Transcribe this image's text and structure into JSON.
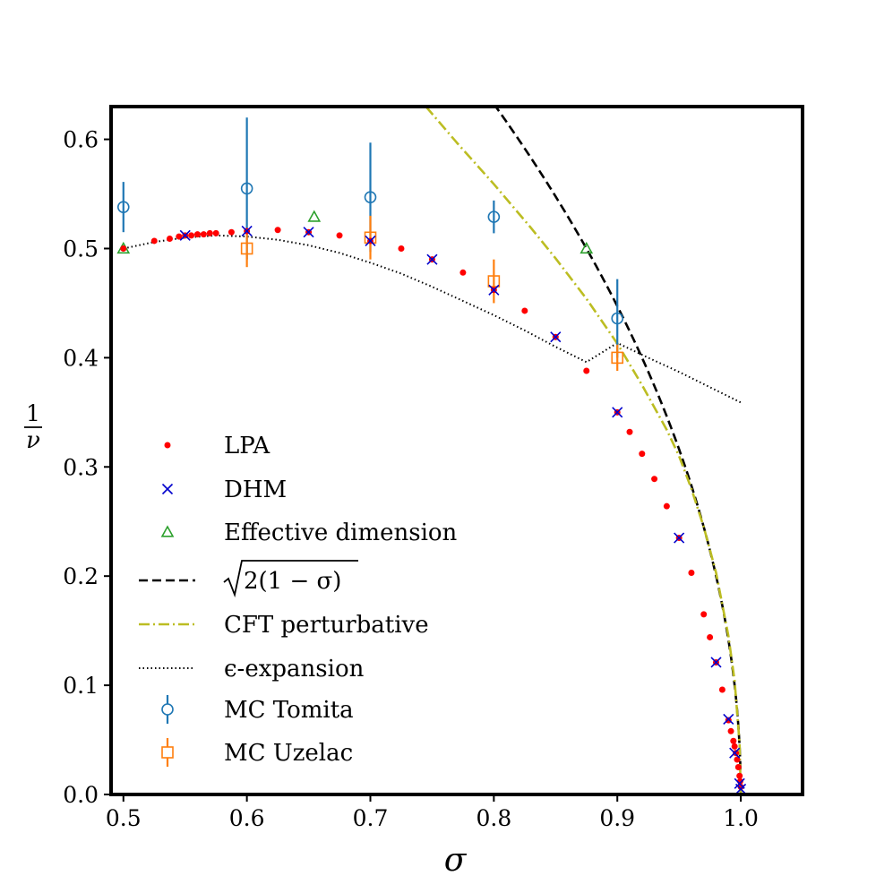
{
  "chart_data": {
    "type": "scatter",
    "xlabel": "σ",
    "ylabel_num": "1",
    "ylabel_den": "ν",
    "xlim": [
      0.49,
      1.05
    ],
    "ylim": [
      0.0,
      0.63
    ],
    "xticks": [
      0.5,
      0.6,
      0.7,
      0.8,
      0.9,
      1.0
    ],
    "yticks": [
      0.0,
      0.1,
      0.2,
      0.3,
      0.4,
      0.5,
      0.6
    ],
    "xtick_labels": [
      "0.5",
      "0.6",
      "0.7",
      "0.8",
      "0.9",
      "1.0"
    ],
    "ytick_labels": [
      "0.0",
      "0.1",
      "0.2",
      "0.3",
      "0.4",
      "0.5",
      "0.6"
    ],
    "grid": false,
    "legend_position": "left",
    "colors": {
      "lpa": "#ff0000",
      "dhm": "#0000cc",
      "effective": "#2ca02c",
      "sqrt": "#000000",
      "cft": "#bcbd22",
      "eps": "#000000",
      "tomita": "#1f77b4",
      "uzelac": "#ff7f0e"
    },
    "series": {
      "lpa": {
        "name": "LPA",
        "points": [
          [
            0.5,
            0.5
          ],
          [
            0.525,
            0.507
          ],
          [
            0.5375,
            0.509
          ],
          [
            0.545,
            0.511
          ],
          [
            0.55,
            0.512
          ],
          [
            0.555,
            0.512
          ],
          [
            0.56,
            0.513
          ],
          [
            0.565,
            0.513
          ],
          [
            0.57,
            0.514
          ],
          [
            0.575,
            0.514
          ],
          [
            0.5875,
            0.515
          ],
          [
            0.6,
            0.516
          ],
          [
            0.625,
            0.517
          ],
          [
            0.65,
            0.515
          ],
          [
            0.675,
            0.512
          ],
          [
            0.7,
            0.507
          ],
          [
            0.725,
            0.5
          ],
          [
            0.75,
            0.49
          ],
          [
            0.775,
            0.478
          ],
          [
            0.8,
            0.462
          ],
          [
            0.825,
            0.443
          ],
          [
            0.85,
            0.419
          ],
          [
            0.875,
            0.388
          ],
          [
            0.9,
            0.35
          ],
          [
            0.91,
            0.332
          ],
          [
            0.92,
            0.312
          ],
          [
            0.93,
            0.289
          ],
          [
            0.94,
            0.264
          ],
          [
            0.95,
            0.235
          ],
          [
            0.96,
            0.203
          ],
          [
            0.97,
            0.165
          ],
          [
            0.975,
            0.144
          ],
          [
            0.98,
            0.121
          ],
          [
            0.985,
            0.096
          ],
          [
            0.99,
            0.068
          ],
          [
            0.992,
            0.058
          ],
          [
            0.994,
            0.049
          ],
          [
            0.995,
            0.044
          ],
          [
            0.996,
            0.038
          ],
          [
            0.997,
            0.032
          ],
          [
            0.998,
            0.025
          ],
          [
            0.999,
            0.017
          ],
          [
            0.9995,
            0.012
          ],
          [
            1.0,
            0.007
          ]
        ]
      },
      "dhm": {
        "name": "DHM",
        "points": [
          [
            0.55,
            0.512
          ],
          [
            0.6,
            0.516
          ],
          [
            0.65,
            0.515
          ],
          [
            0.7,
            0.507
          ],
          [
            0.75,
            0.49
          ],
          [
            0.8,
            0.462
          ],
          [
            0.85,
            0.419
          ],
          [
            0.9,
            0.35
          ],
          [
            0.95,
            0.235
          ],
          [
            0.98,
            0.121
          ],
          [
            0.99,
            0.069
          ],
          [
            0.995,
            0.038
          ],
          [
            0.999,
            0.01
          ],
          [
            1.0,
            0.005
          ]
        ]
      },
      "effective": {
        "name": "Effective dimension",
        "points": [
          [
            0.5,
            0.5
          ],
          [
            0.6545,
            0.529
          ],
          [
            0.875,
            0.5
          ]
        ]
      },
      "sqrt": {
        "name": "√2(1 − σ)",
        "formula": "sqrt(2*(1-x))"
      },
      "cft": {
        "name": "CFT perturbative",
        "points": [
          [
            0.745,
            0.63
          ],
          [
            0.77,
            0.597
          ],
          [
            0.8,
            0.559
          ],
          [
            0.83,
            0.519
          ],
          [
            0.85,
            0.491
          ],
          [
            0.875,
            0.454
          ],
          [
            0.9,
            0.413
          ],
          [
            0.92,
            0.375
          ],
          [
            0.94,
            0.334
          ],
          [
            0.95,
            0.31
          ],
          [
            0.96,
            0.28
          ],
          [
            0.97,
            0.245
          ],
          [
            0.98,
            0.203
          ],
          [
            0.99,
            0.145
          ],
          [
            0.995,
            0.104
          ],
          [
            0.999,
            0.047
          ],
          [
            1.0,
            0.0
          ]
        ]
      },
      "eps": {
        "name": "ϵ-expansion",
        "points": [
          [
            0.5,
            0.5
          ],
          [
            0.525,
            0.506
          ],
          [
            0.55,
            0.51
          ],
          [
            0.575,
            0.512
          ],
          [
            0.6,
            0.511
          ],
          [
            0.625,
            0.508
          ],
          [
            0.65,
            0.503
          ],
          [
            0.675,
            0.496
          ],
          [
            0.7,
            0.487
          ],
          [
            0.725,
            0.477
          ],
          [
            0.75,
            0.465
          ],
          [
            0.775,
            0.452
          ],
          [
            0.8,
            0.439
          ],
          [
            0.825,
            0.425
          ],
          [
            0.85,
            0.41
          ],
          [
            0.875,
            0.396
          ],
          [
            0.9,
            0.4135
          ],
          [
            0.925,
            0.4
          ],
          [
            0.95,
            0.387
          ],
          [
            0.975,
            0.373
          ],
          [
            1.0,
            0.359
          ]
        ]
      },
      "tomita": {
        "name": "MC Tomita",
        "points": [
          [
            0.5,
            0.538,
            0.023
          ],
          [
            0.6,
            0.555,
            0.065
          ],
          [
            0.7,
            0.547,
            0.05
          ],
          [
            0.8,
            0.529,
            0.015
          ],
          [
            0.9,
            0.436,
            0.036
          ]
        ]
      },
      "uzelac": {
        "name": "MC Uzelac",
        "points": [
          [
            0.6,
            0.5,
            0.017
          ],
          [
            0.7,
            0.51,
            0.02
          ],
          [
            0.8,
            0.47,
            0.02
          ],
          [
            0.9,
            0.4,
            0.012
          ]
        ]
      }
    },
    "legend": [
      "LPA",
      "DHM",
      "Effective dimension",
      "√2(1 − σ)",
      "CFT perturbative",
      "ϵ-expansion",
      "MC Tomita",
      "MC Uzelac"
    ]
  }
}
